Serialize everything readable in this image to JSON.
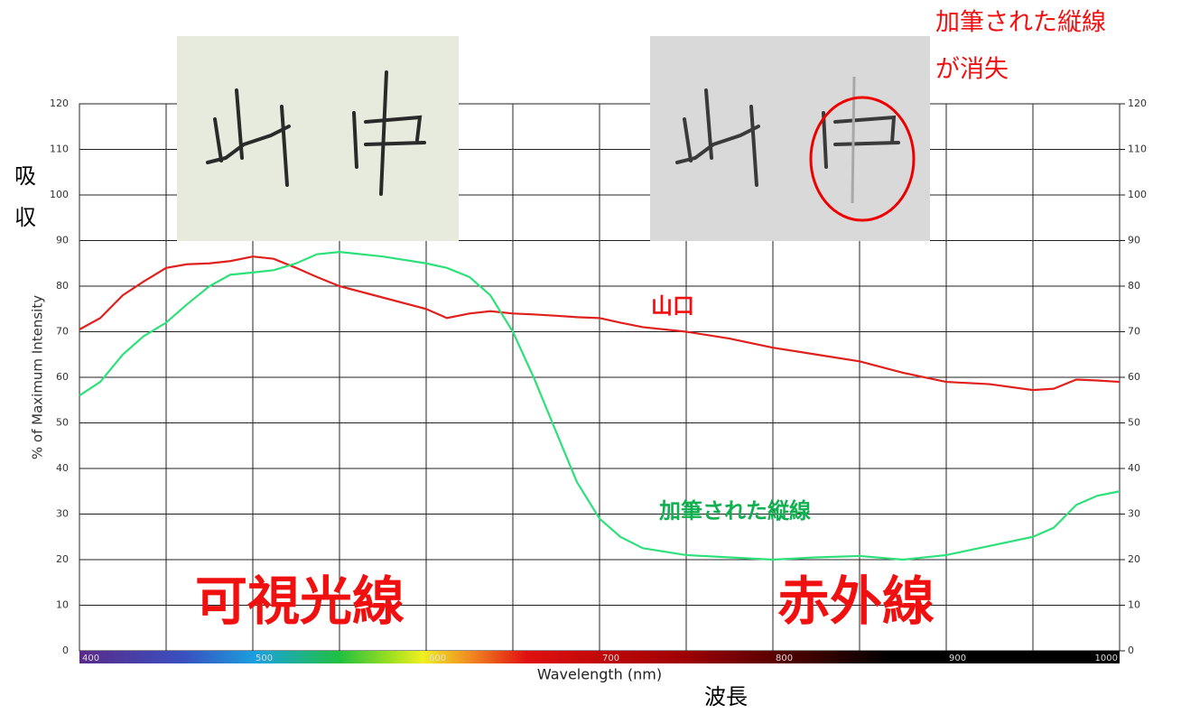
{
  "chart_data": {
    "type": "line",
    "y_label": "% of Maximum Intensity",
    "x_label": "Wavelength (nm)",
    "annotations": {
      "absorption": [
        "吸",
        "収"
      ],
      "wavelength": "波長",
      "visible": "可視光線",
      "infrared": "赤外線",
      "red_label": "山口",
      "green_label": "加筆された縦線",
      "note": [
        "加筆された縦線",
        "が消失"
      ]
    },
    "x": [
      400,
      412,
      425,
      437,
      450,
      462,
      475,
      487,
      500,
      512,
      525,
      537,
      550,
      575,
      600,
      612,
      625,
      637,
      650,
      662,
      675,
      687,
      700,
      712,
      725,
      750,
      775,
      800,
      825,
      850,
      875,
      900,
      925,
      950,
      962,
      975,
      987,
      1000
    ],
    "series": [
      {
        "name": "山口",
        "color": "#e0201c",
        "values": [
          70.5,
          73,
          78,
          81,
          84,
          84.8,
          85,
          85.5,
          86.5,
          86,
          84,
          82,
          80,
          77.5,
          75,
          73,
          74,
          74.5,
          74,
          73.8,
          73.5,
          73.2,
          73,
          72,
          71,
          70,
          68.5,
          66.5,
          65,
          63.5,
          61,
          59,
          58.5,
          57.2,
          57.5,
          59.5,
          59.3,
          59
        ]
      },
      {
        "name": "加筆された縦線",
        "color": "#2ee07a",
        "values": [
          56,
          59,
          65,
          69,
          72,
          76,
          80,
          82.5,
          83,
          83.5,
          85,
          87,
          87.5,
          86.5,
          85,
          84,
          82,
          78,
          70,
          60,
          48,
          37,
          29,
          25,
          22.5,
          21,
          20.5,
          20,
          20.5,
          20.8,
          20,
          21,
          23,
          25,
          27,
          32,
          34,
          35
        ]
      }
    ],
    "xlim": [
      400,
      1000
    ],
    "xticks": [
      400,
      500,
      600,
      700,
      800,
      900,
      1000
    ],
    "x_minor_ticks": [
      450,
      550,
      650,
      750,
      850,
      950
    ],
    "ylim": [
      0,
      120
    ],
    "yticks": [
      0,
      10,
      20,
      30,
      40,
      50,
      60,
      70,
      80,
      90,
      100,
      110,
      120
    ],
    "y2lim": [
      0,
      120
    ],
    "y2ticks": [
      0,
      10,
      20,
      30,
      40,
      50,
      60,
      70,
      80,
      90,
      100,
      110,
      120
    ],
    "grid": true
  }
}
